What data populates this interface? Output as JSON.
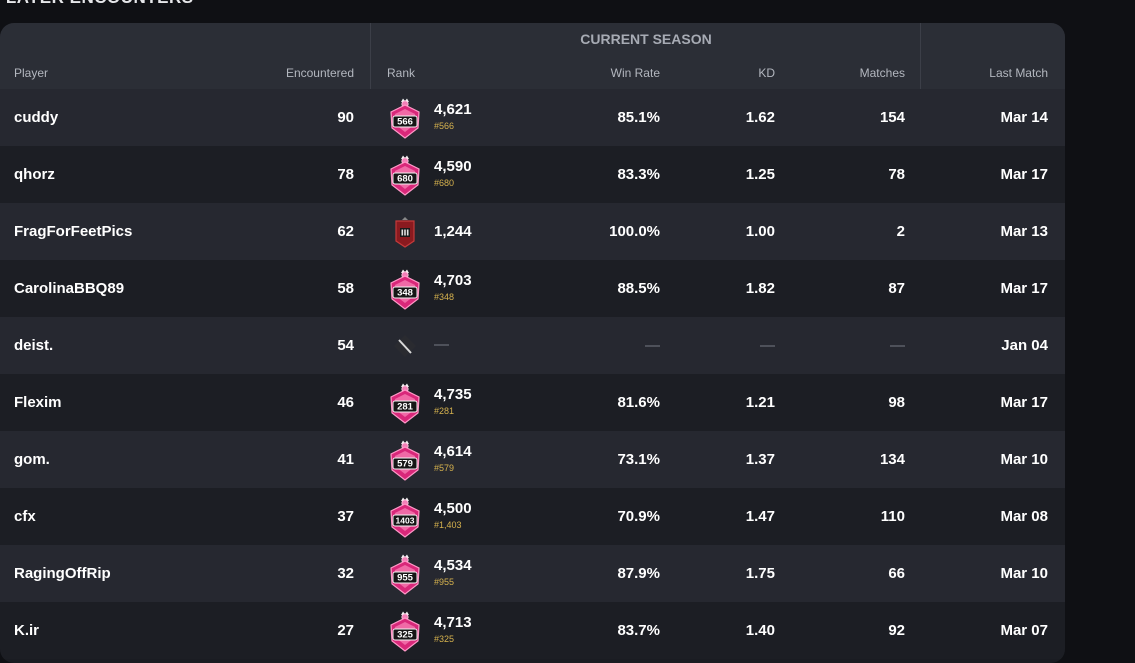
{
  "section_title": "PLAYER ENCOUNTERS",
  "header": {
    "season_label": "CURRENT SEASON",
    "columns": {
      "player": "Player",
      "encountered": "Encountered",
      "rank": "Rank",
      "win_rate": "Win Rate",
      "kd": "KD",
      "matches": "Matches",
      "last_match": "Last Match"
    }
  },
  "colors": {
    "champion_pink": "#d9287a",
    "rank_gold": "#d6b24e",
    "iron_red": "#8a1a1f"
  },
  "rows": [
    {
      "player": "cuddy",
      "encountered": "90",
      "rank_icon": "champion-rank-icon",
      "badge": "566",
      "rank": "4,621",
      "rank_pos": "#566",
      "win_rate": "85.1%",
      "kd": "1.62",
      "matches": "154",
      "last_match": "Mar 14"
    },
    {
      "player": "qhorz",
      "encountered": "78",
      "rank_icon": "champion-rank-icon",
      "badge": "680",
      "rank": "4,590",
      "rank_pos": "#680",
      "win_rate": "83.3%",
      "kd": "1.25",
      "matches": "78",
      "last_match": "Mar 17"
    },
    {
      "player": "FragForFeetPics",
      "encountered": "62",
      "rank_icon": "iron-rank-icon",
      "badge": "",
      "rank": "1,244",
      "rank_pos": "",
      "win_rate": "100.0%",
      "kd": "1.00",
      "matches": "2",
      "last_match": "Mar 13"
    },
    {
      "player": "CarolinaBBQ89",
      "encountered": "58",
      "rank_icon": "champion-rank-icon",
      "badge": "348",
      "rank": "4,703",
      "rank_pos": "#348",
      "win_rate": "88.5%",
      "kd": "1.82",
      "matches": "87",
      "last_match": "Mar 17"
    },
    {
      "player": "deist.",
      "encountered": "54",
      "rank_icon": "unranked-icon",
      "badge": "",
      "rank": "—",
      "rank_pos": "",
      "win_rate": "—",
      "kd": "—",
      "matches": "—",
      "last_match": "Jan 04"
    },
    {
      "player": "Flexim",
      "encountered": "46",
      "rank_icon": "champion-rank-icon",
      "badge": "281",
      "rank": "4,735",
      "rank_pos": "#281",
      "win_rate": "81.6%",
      "kd": "1.21",
      "matches": "98",
      "last_match": "Mar 17"
    },
    {
      "player": "gom.",
      "encountered": "41",
      "rank_icon": "champion-rank-icon",
      "badge": "579",
      "rank": "4,614",
      "rank_pos": "#579",
      "win_rate": "73.1%",
      "kd": "1.37",
      "matches": "134",
      "last_match": "Mar 10"
    },
    {
      "player": "cfx",
      "encountered": "37",
      "rank_icon": "champion-rank-icon",
      "badge": "1403",
      "rank": "4,500",
      "rank_pos": "#1,403",
      "win_rate": "70.9%",
      "kd": "1.47",
      "matches": "110",
      "last_match": "Mar 08"
    },
    {
      "player": "RagingOffRip",
      "encountered": "32",
      "rank_icon": "champion-rank-icon",
      "badge": "955",
      "rank": "4,534",
      "rank_pos": "#955",
      "win_rate": "87.9%",
      "kd": "1.75",
      "matches": "66",
      "last_match": "Mar 10"
    },
    {
      "player": "K.ir",
      "encountered": "27",
      "rank_icon": "champion-rank-icon",
      "badge": "325",
      "rank": "4,713",
      "rank_pos": "#325",
      "win_rate": "83.7%",
      "kd": "1.40",
      "matches": "92",
      "last_match": "Mar 07"
    }
  ]
}
